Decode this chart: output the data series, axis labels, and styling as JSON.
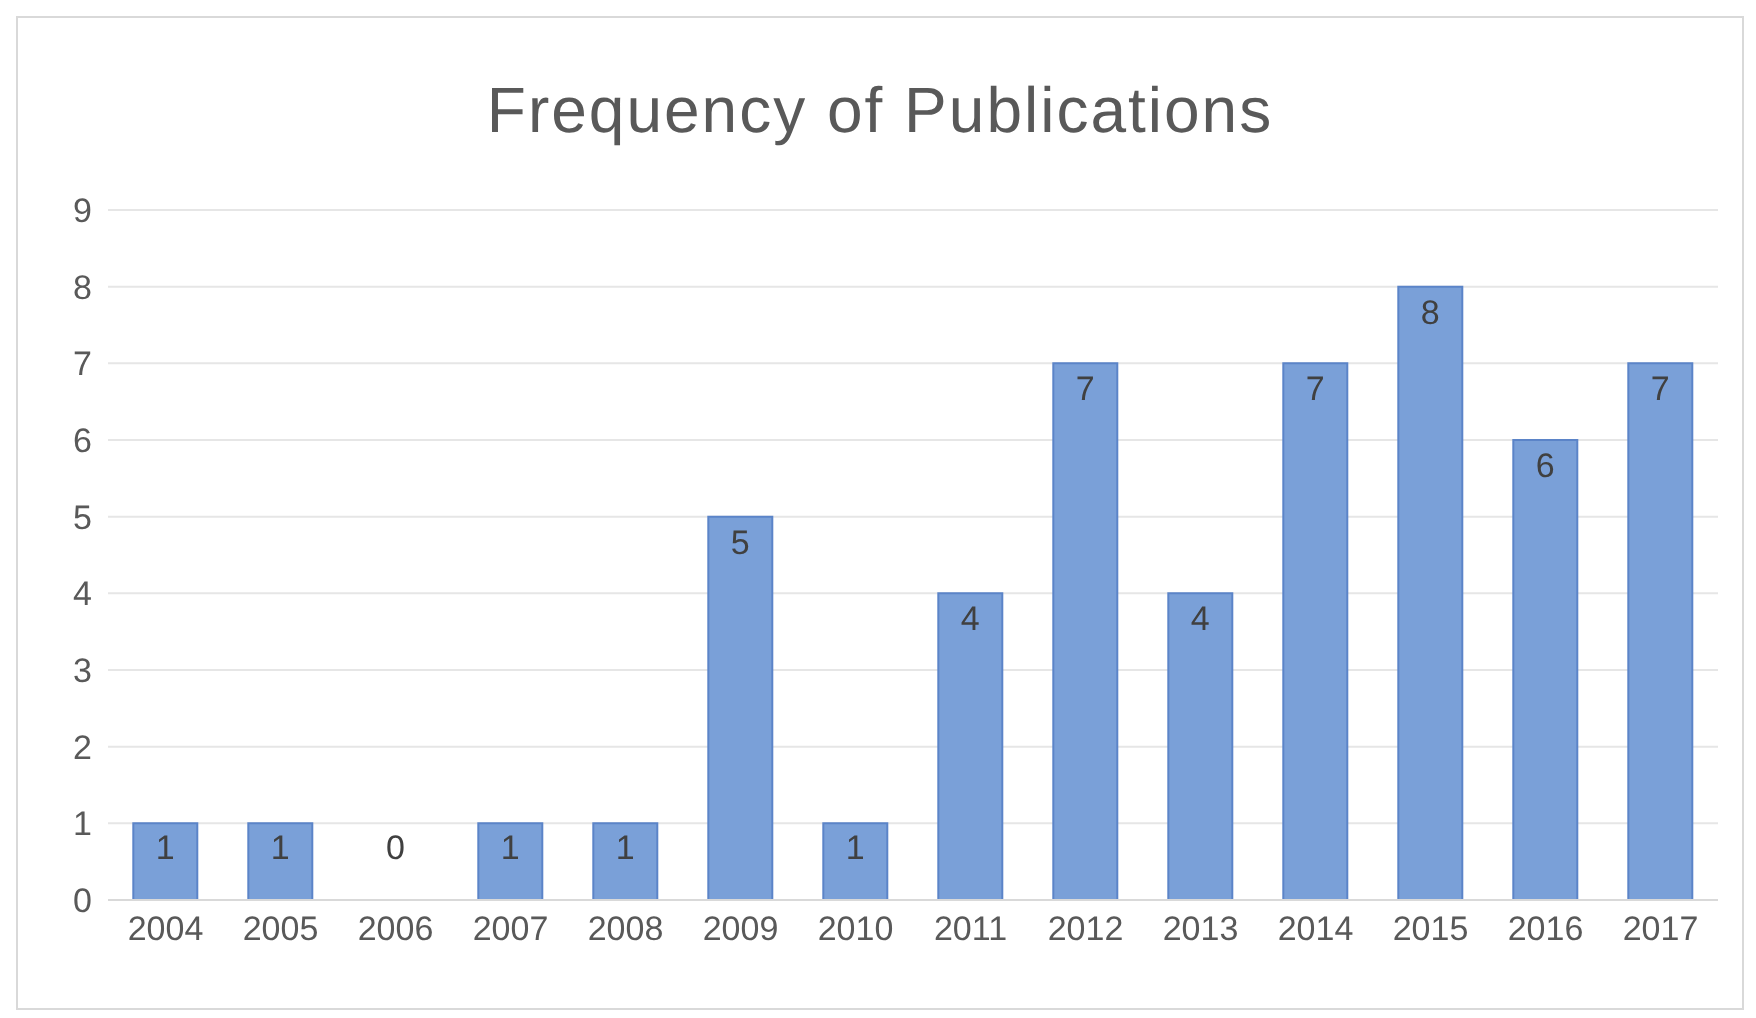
{
  "chart_data": {
    "type": "bar",
    "title": "Frequency of Publications",
    "categories": [
      "2004",
      "2005",
      "2006",
      "2007",
      "2008",
      "2009",
      "2010",
      "2011",
      "2012",
      "2013",
      "2014",
      "2015",
      "2016",
      "2017"
    ],
    "values": [
      1,
      1,
      0,
      1,
      1,
      5,
      1,
      4,
      7,
      4,
      7,
      8,
      6,
      7
    ],
    "color": "#7aa0d8",
    "ylim": [
      0,
      9
    ],
    "yticks": [
      0,
      1,
      2,
      3,
      4,
      5,
      6,
      7,
      8,
      9
    ],
    "grid": "y",
    "data_labels": true
  }
}
